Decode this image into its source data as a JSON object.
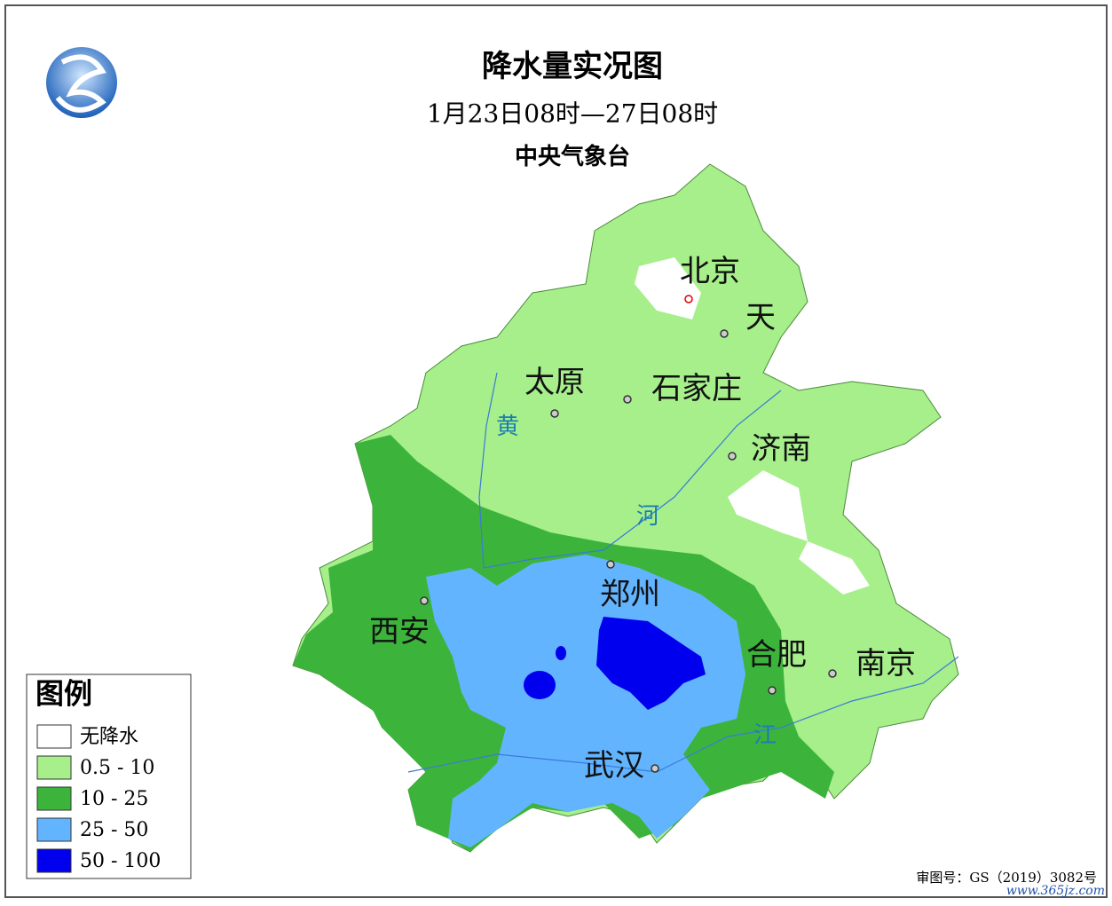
{
  "header": {
    "title": "降水量实况图",
    "subtitle": "1月23日08时—27日08时",
    "source": "中央气象台"
  },
  "cities": [
    "北京",
    "天",
    "太原",
    "石家庄",
    "济南",
    "郑州",
    "西安",
    "合肥",
    "南京",
    "武汉"
  ],
  "rivers": [
    "黄",
    "河",
    "江"
  ],
  "legend": {
    "title": "图例",
    "items": [
      {
        "label": "无降水",
        "color": "#ffffff"
      },
      {
        "label": "0.5 - 10",
        "color": "#a6ef8b"
      },
      {
        "label": "10  - 25",
        "color": "#3cb43c"
      },
      {
        "label": "25  - 50",
        "color": "#63b4ff"
      },
      {
        "label": "50  - 100",
        "color": "#0000ee"
      }
    ]
  },
  "footer": {
    "approval": "审图号：GS（2019）3082号",
    "watermark": "www.365jz.com"
  }
}
